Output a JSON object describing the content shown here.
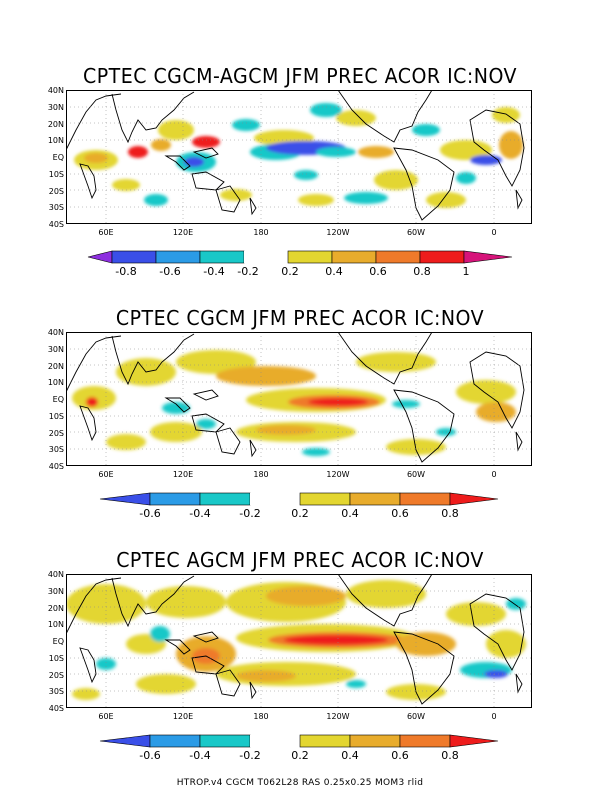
{
  "panels": [
    {
      "title": "CPTEC CGCM-AGCM JFM PREC ACOR IC:NOV",
      "colorbar": {
        "labels": [
          "-0.8",
          "-0.6",
          "-0.4",
          "-0.2",
          "0.2",
          "0.4",
          "0.6",
          "0.8",
          "1"
        ],
        "colors": [
          "#8e2fe0",
          "#3a4fe8",
          "#2b9be6",
          "#19c8c8",
          "#ffffff",
          "#e3d630",
          "#e8ac2c",
          "#ef7a2a",
          "#ee1c1c",
          "#d6147a"
        ]
      }
    },
    {
      "title": "CPTEC CGCM JFM PREC ACOR IC:NOV",
      "colorbar": {
        "labels": [
          "-0.6",
          "-0.4",
          "-0.2",
          "0.2",
          "0.4",
          "0.6",
          "0.8"
        ],
        "colors": [
          "#3a4fe8",
          "#2b9be6",
          "#19c8c8",
          "#ffffff",
          "#e3d630",
          "#e8ac2c",
          "#ef7a2a",
          "#ee1c1c"
        ]
      }
    },
    {
      "title": "CPTEC AGCM JFM PREC ACOR IC:NOV",
      "colorbar": {
        "labels": [
          "-0.6",
          "-0.4",
          "-0.2",
          "0.2",
          "0.4",
          "0.6",
          "0.8"
        ],
        "colors": [
          "#3a4fe8",
          "#2b9be6",
          "#19c8c8",
          "#ffffff",
          "#e3d630",
          "#e8ac2c",
          "#ef7a2a",
          "#ee1c1c"
        ]
      }
    }
  ],
  "axes": {
    "lat_labels": [
      "40N",
      "30N",
      "20N",
      "10N",
      "EQ",
      "10S",
      "20S",
      "30S",
      "40S"
    ],
    "lon_labels": [
      "60E",
      "120E",
      "180",
      "120W",
      "60W",
      "0"
    ]
  },
  "footer": "HTROP.v4  CGCM  T062L28  RAS  0.25x0.25  MOM3  rlid"
}
